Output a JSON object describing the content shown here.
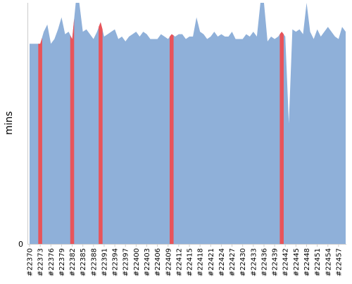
{
  "chart_data": {
    "type": "area",
    "title": "",
    "xlabel": "",
    "ylabel": "mins",
    "ylim": [
      0,
      100
    ],
    "y_ticks": [
      0
    ],
    "grid": false,
    "legend": "none",
    "x": [
      "#22370",
      "#22371",
      "#22372",
      "#22373",
      "#22374",
      "#22375",
      "#22376",
      "#22377",
      "#22378",
      "#22379",
      "#22380",
      "#22381",
      "#22382",
      "#22383",
      "#22384",
      "#22385",
      "#22386",
      "#22387",
      "#22388",
      "#22389",
      "#22390",
      "#22391",
      "#22392",
      "#22393",
      "#22394",
      "#22395",
      "#22396",
      "#22397",
      "#22398",
      "#22399",
      "#22400",
      "#22401",
      "#22402",
      "#22403",
      "#22404",
      "#22405",
      "#22406",
      "#22407",
      "#22408",
      "#22409",
      "#22410",
      "#22411",
      "#22412",
      "#22413",
      "#22414",
      "#22415",
      "#22416",
      "#22417",
      "#22418",
      "#22419",
      "#22420",
      "#22421",
      "#22422",
      "#22423",
      "#22424",
      "#22425",
      "#22426",
      "#22427",
      "#22428",
      "#22429",
      "#22430",
      "#22431",
      "#22432",
      "#22433",
      "#22434",
      "#22435",
      "#22436",
      "#22437",
      "#22438",
      "#22439",
      "#22440",
      "#22441",
      "#22442",
      "#22443",
      "#22444",
      "#22445",
      "#22446",
      "#22447",
      "#22448",
      "#22449",
      "#22450",
      "#22451",
      "#22452",
      "#22453",
      "#22454",
      "#22455",
      "#22456",
      "#22457",
      "#22458",
      "#22459"
    ],
    "x_tick_labels": [
      "#22370",
      "#22373",
      "#22376",
      "#22379",
      "#22382",
      "#22385",
      "#22388",
      "#22391",
      "#22394",
      "#22397",
      "#22400",
      "#22403",
      "#22406",
      "#22409",
      "#22412",
      "#22415",
      "#22418",
      "#22421",
      "#22424",
      "#22427",
      "#22430",
      "#22433",
      "#22436",
      "#22439",
      "#22442",
      "#22445",
      "#22448",
      "#22451",
      "#22454",
      "#22457"
    ],
    "series": [
      {
        "values": [
          83,
          83,
          83,
          83,
          88,
          91,
          83,
          85,
          89,
          94,
          87,
          88,
          85,
          102,
          102,
          88,
          89,
          87,
          85,
          88,
          92,
          86,
          87,
          88,
          89,
          85,
          86,
          84,
          86,
          87,
          88,
          86,
          88,
          87,
          85,
          85,
          85,
          87,
          86,
          85,
          87,
          86,
          87,
          87,
          85,
          86,
          86,
          94,
          88,
          87,
          85,
          86,
          88,
          86,
          87,
          86,
          86,
          88,
          85,
          85,
          85,
          87,
          86,
          88,
          86,
          102,
          102,
          84,
          86,
          85,
          86,
          88,
          86,
          50,
          89,
          88,
          89,
          87,
          102,
          88,
          85,
          89,
          86,
          88,
          90,
          88,
          86,
          85,
          90,
          88
        ]
      }
    ],
    "failed_builds": [
      "#22373",
      "#22382",
      "#22390",
      "#22410",
      "#22441"
    ],
    "colors": {
      "area": "#8fb0d9",
      "failed": "#e8545a",
      "axis": "#cccccc",
      "text": "#000000"
    }
  }
}
